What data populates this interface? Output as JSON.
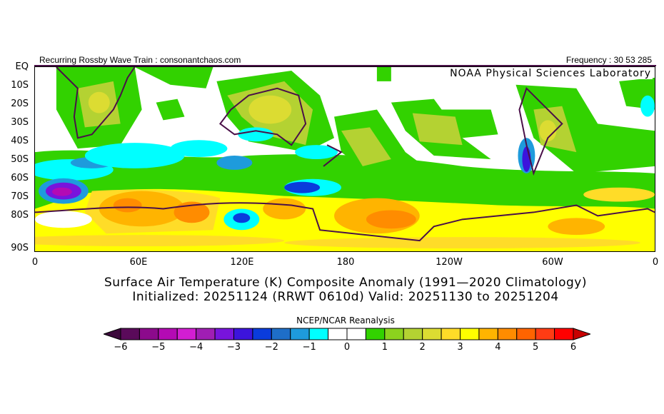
{
  "header": {
    "left": "Recurring Rossby Wave Train : consonantchaos.com",
    "right": "Frequency : 30 53 285"
  },
  "map": {
    "credit": "NOAA Physical Sciences Laboratory",
    "lat_labels": [
      "EQ",
      "10S",
      "20S",
      "30S",
      "40S",
      "50S",
      "60S",
      "70S",
      "80S",
      "90S"
    ],
    "lon_labels": [
      "0",
      "60E",
      "120E",
      "180",
      "120W",
      "60W",
      "0"
    ]
  },
  "title": {
    "line1": "Surface Air Temperature (K) Composite Anomaly (1991—2020 Climatology)",
    "line2": "Initialized: 20251124 (RRWT 0610d) Valid: 20251130 to 20251204"
  },
  "colorbar": {
    "title": "NCEP/NCAR Reanalysis",
    "labels": [
      "-6",
      "-5",
      "-4",
      "-3",
      "-2",
      "-1",
      "0",
      "1",
      "2",
      "3",
      "4",
      "5",
      "6"
    ],
    "min": -6,
    "max": 6,
    "step": 0.5,
    "colors": [
      "#5a0a5a",
      "#8c0a8c",
      "#b40ab4",
      "#d21ed2",
      "#a01eb4",
      "#7814dc",
      "#3c14dc",
      "#0a3cdc",
      "#1e6ec8",
      "#1e9bdc",
      "#00ffff",
      "#ffffff",
      "#ffffff",
      "#32d200",
      "#8cd21e",
      "#b4d232",
      "#dcdc32",
      "#ffdc28",
      "#ffff00",
      "#ffb400",
      "#ff8c00",
      "#ff6400",
      "#ff3c14",
      "#ff0000"
    ],
    "under_color": "#3c0a3c",
    "over_color": "#c80000"
  }
}
